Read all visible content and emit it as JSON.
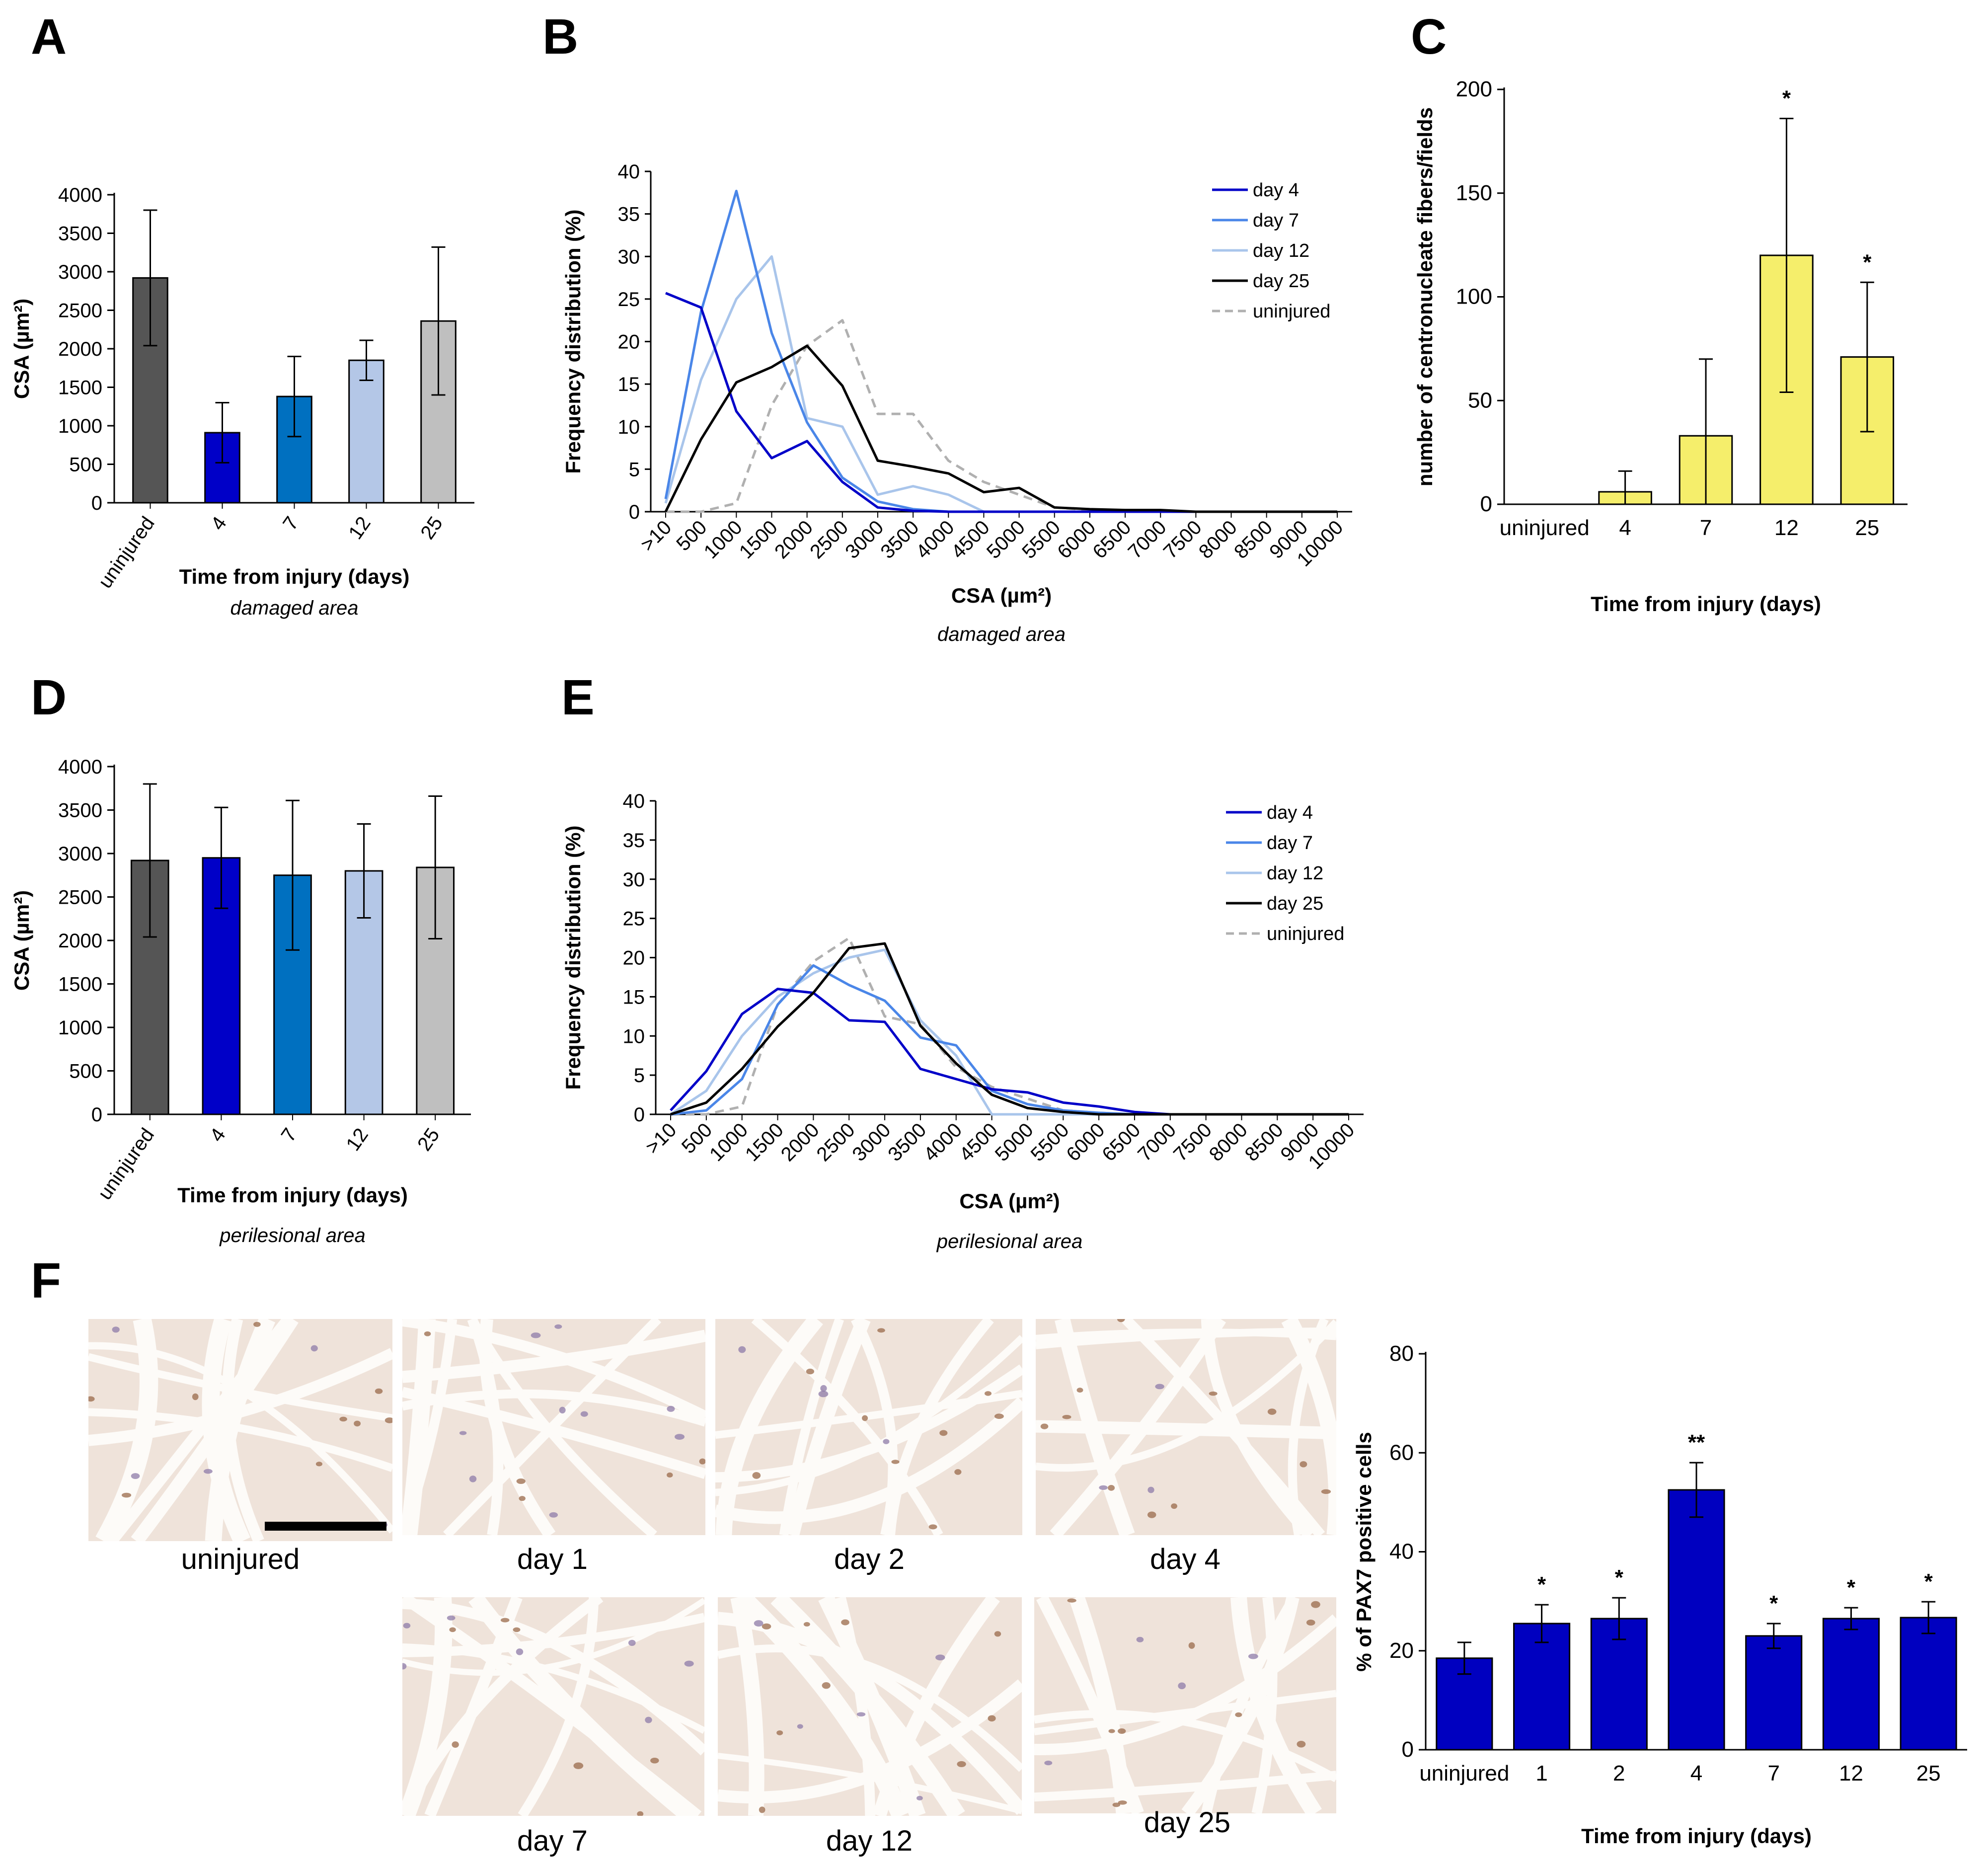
{
  "panels": {
    "A": "A",
    "B": "B",
    "C": "C",
    "D": "D",
    "E": "E",
    "F": "F"
  },
  "colors": {
    "uninjured_bar": "#555555",
    "day4": "#0000C8",
    "day7": "#4A86E8",
    "day7_bar": "#0070C0",
    "day12": "#A9C5EB",
    "day12_bar": "#B4C7E7",
    "day25_bar": "#BFBFBF",
    "day25": "#000000",
    "uninjured_line": "#B0B0B0",
    "yellow": "#F5EE6B",
    "pax7_bar": "#0000C0",
    "tissue_bg": "#EFE3DA",
    "tissue_gap": "#FDFBF8"
  },
  "chart_data": [
    {
      "id": "A",
      "type": "bar",
      "title": "",
      "categories": [
        "uninjured",
        "4",
        "7",
        "12",
        "25"
      ],
      "values": [
        2920,
        910,
        1380,
        1850,
        2360
      ],
      "errors": [
        880,
        390,
        520,
        260,
        960
      ],
      "xlabel": "Time from injury (days)",
      "ylabel": "CSA (µm²)",
      "caption": "damaged area",
      "ylim": [
        0,
        4000
      ],
      "yticks": [
        "0",
        "500",
        "1000",
        "1500",
        "2000",
        "2500",
        "3000",
        "3500",
        "4000"
      ]
    },
    {
      "id": "B",
      "type": "line",
      "categories": [
        ">10",
        "500",
        "1000",
        "1500",
        "2000",
        "2500",
        "3000",
        "3500",
        "4000",
        "4500",
        "5000",
        "5500",
        "6000",
        "6500",
        "7000",
        "7500",
        "8000",
        "8500",
        "9000",
        "10000"
      ],
      "series": [
        {
          "name": "day 4",
          "values": [
            25.7,
            24,
            11.8,
            6.3,
            8.3,
            3.5,
            0.5,
            0.1,
            0,
            0,
            0,
            0,
            0,
            0,
            0,
            0,
            0,
            0,
            0,
            0
          ]
        },
        {
          "name": "day 7",
          "values": [
            1.5,
            23.5,
            37.7,
            21,
            10.5,
            4,
            1.2,
            0.3,
            0,
            0,
            0,
            0,
            0,
            0,
            0,
            0,
            0,
            0,
            0,
            0
          ]
        },
        {
          "name": "day 12",
          "values": [
            1,
            15.5,
            25,
            30,
            11,
            10,
            2,
            3,
            2,
            0,
            0,
            0,
            0,
            0,
            0,
            0,
            0,
            0,
            0,
            0
          ]
        },
        {
          "name": "day 25",
          "values": [
            0,
            8.5,
            15.2,
            17,
            19.5,
            14.8,
            6,
            5.3,
            4.5,
            2.3,
            2.8,
            0.5,
            0.3,
            0.2,
            0.2,
            0,
            0,
            0,
            0,
            0
          ]
        },
        {
          "name": "uninjured",
          "values": [
            0,
            0,
            1,
            12.5,
            19.5,
            22.5,
            11.5,
            11.5,
            6,
            3.5,
            2,
            0.5,
            0.2,
            0,
            0,
            0,
            0,
            0,
            0,
            0
          ]
        }
      ],
      "xlabel": "CSA (µm²)",
      "ylabel": "Frequency distribution (%)",
      "caption": "damaged area",
      "ylim": [
        0,
        40
      ],
      "yticks": [
        "0",
        "5",
        "10",
        "15",
        "20",
        "25",
        "30",
        "35",
        "40"
      ]
    },
    {
      "id": "C",
      "type": "bar",
      "categories": [
        "uninjured",
        "4",
        "7",
        "12",
        "25"
      ],
      "values": [
        0,
        6,
        33,
        120,
        71
      ],
      "errors": [
        0,
        10,
        37,
        66,
        36
      ],
      "annotations": [
        "",
        "",
        "",
        "*",
        "*"
      ],
      "xlabel": "Time from injury (days)",
      "ylabel": "number of centronucleate fibers/fields",
      "ylim": [
        0,
        200
      ],
      "yticks": [
        "0",
        "50",
        "100",
        "150",
        "200"
      ]
    },
    {
      "id": "D",
      "type": "bar",
      "categories": [
        "uninjured",
        "4",
        "7",
        "12",
        "25"
      ],
      "values": [
        2920,
        2950,
        2750,
        2800,
        2840
      ],
      "errors": [
        880,
        580,
        860,
        540,
        820
      ],
      "xlabel": "Time from injury (days)",
      "ylabel": "CSA (µm²)",
      "caption": "perilesional area",
      "ylim": [
        0,
        4000
      ],
      "yticks": [
        "0",
        "500",
        "1000",
        "1500",
        "2000",
        "2500",
        "3000",
        "3500",
        "4000"
      ]
    },
    {
      "id": "E",
      "type": "line",
      "categories": [
        ">10",
        "500",
        "1000",
        "1500",
        "2000",
        "2500",
        "3000",
        "3500",
        "4000",
        "4500",
        "5000",
        "5500",
        "6000",
        "6500",
        "7000",
        "7500",
        "8000",
        "8500",
        "9000",
        "10000"
      ],
      "series": [
        {
          "name": "day 4",
          "values": [
            0.5,
            5.5,
            12.8,
            16,
            15.5,
            12,
            11.8,
            5.8,
            4.5,
            3.2,
            2.8,
            1.5,
            1,
            0.3,
            0,
            0,
            0,
            0,
            0,
            0
          ]
        },
        {
          "name": "day 7",
          "values": [
            0,
            0.5,
            4.5,
            14,
            19,
            16.5,
            14.5,
            9.8,
            8.8,
            3,
            1.3,
            0.5,
            0.2,
            0,
            0,
            0,
            0,
            0,
            0,
            0
          ]
        },
        {
          "name": "day 12",
          "values": [
            0,
            3,
            10,
            15,
            18,
            20,
            21,
            12,
            7.5,
            0,
            0,
            0,
            0,
            0,
            0,
            0,
            0,
            0,
            0,
            0
          ]
        },
        {
          "name": "day 25",
          "values": [
            0,
            1.5,
            5.8,
            11.2,
            15.5,
            21.2,
            21.8,
            11.3,
            6.5,
            2.5,
            0.8,
            0.3,
            0,
            0,
            0,
            0,
            0,
            0,
            0,
            0
          ]
        },
        {
          "name": "uninjured",
          "values": [
            0,
            0,
            1,
            14,
            19.5,
            22.5,
            12.5,
            11.5,
            6,
            3.5,
            2,
            0.5,
            0.2,
            0,
            0,
            0,
            0,
            0,
            0,
            0
          ]
        }
      ],
      "xlabel": "CSA (µm²)",
      "ylabel": "Frequency distribution (%)",
      "caption": "perilesional area",
      "ylim": [
        0,
        40
      ],
      "yticks": [
        "0",
        "5",
        "10",
        "15",
        "20",
        "25",
        "30",
        "35",
        "40"
      ]
    },
    {
      "id": "F_chart",
      "type": "bar",
      "categories": [
        "uninjured",
        "1",
        "2",
        "4",
        "7",
        "12",
        "25"
      ],
      "values": [
        18.5,
        25.5,
        26.5,
        52.5,
        23,
        26.5,
        26.7
      ],
      "errors": [
        3.2,
        3.8,
        4.2,
        5.5,
        2.5,
        2.2,
        3.2
      ],
      "annotations": [
        "",
        "*",
        "*",
        "**",
        "*",
        "*",
        "*"
      ],
      "xlabel": "Time from injury (days)",
      "ylabel": "% of PAX7 positive cells",
      "ylim": [
        0,
        80
      ],
      "yticks": [
        "0",
        "20",
        "40",
        "60",
        "80"
      ]
    }
  ],
  "micrographs": [
    {
      "label": "uninjured",
      "has_scalebar": true
    },
    {
      "label": "day 1",
      "has_scalebar": false
    },
    {
      "label": "day 2",
      "has_scalebar": false
    },
    {
      "label": "day 4",
      "has_scalebar": false
    },
    {
      "label": "day 7",
      "has_scalebar": false
    },
    {
      "label": "day 12",
      "has_scalebar": false
    },
    {
      "label": "day 25",
      "has_scalebar": false
    }
  ]
}
